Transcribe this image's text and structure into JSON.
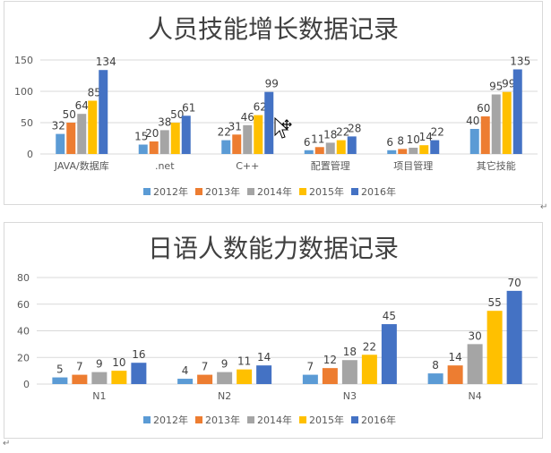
{
  "colors": {
    "2012年": "#5B9BD5",
    "2013年": "#ED7D31",
    "2014年": "#A5A5A5",
    "2015年": "#FFC000",
    "2016年": "#4472C4",
    "grid": "#d9d9d9",
    "axis_text": "#595959",
    "title_text": "#404040",
    "label_text": "#404040"
  },
  "paragraph_mark": "↵",
  "chart_data": [
    {
      "type": "bar",
      "title": "人员技能增长数据记录",
      "categories": [
        "JAVA/数据库",
        ".net",
        "C++",
        "配置管理",
        "项目管理",
        "其它技能"
      ],
      "series": [
        {
          "name": "2012年",
          "values": [
            32,
            15,
            22,
            6,
            6,
            40
          ]
        },
        {
          "name": "2013年",
          "values": [
            50,
            20,
            31,
            11,
            8,
            60
          ]
        },
        {
          "name": "2014年",
          "values": [
            64,
            38,
            46,
            18,
            10,
            95
          ]
        },
        {
          "name": "2015年",
          "values": [
            85,
            50,
            62,
            22,
            14,
            99
          ]
        },
        {
          "name": "2016年",
          "values": [
            134,
            61,
            99,
            28,
            22,
            135
          ]
        }
      ],
      "ylim": [
        0,
        150
      ],
      "yticks": [
        0,
        50,
        100,
        150
      ],
      "grid": true,
      "legend": "bottom",
      "xlabel": "",
      "ylabel": ""
    },
    {
      "type": "bar",
      "title": "日语人数能力数据记录",
      "categories": [
        "N1",
        "N2",
        "N3",
        "N4"
      ],
      "series": [
        {
          "name": "2012年",
          "values": [
            5,
            4,
            7,
            8
          ]
        },
        {
          "name": "2013年",
          "values": [
            7,
            7,
            12,
            14
          ]
        },
        {
          "name": "2014年",
          "values": [
            9,
            9,
            18,
            30
          ]
        },
        {
          "name": "2015年",
          "values": [
            10,
            11,
            22,
            55
          ]
        },
        {
          "name": "2016年",
          "values": [
            16,
            14,
            45,
            70
          ]
        }
      ],
      "ylim": [
        0,
        80
      ],
      "yticks": [
        0,
        20,
        40,
        60,
        80
      ],
      "grid": true,
      "legend": "bottom",
      "xlabel": "",
      "ylabel": ""
    }
  ]
}
